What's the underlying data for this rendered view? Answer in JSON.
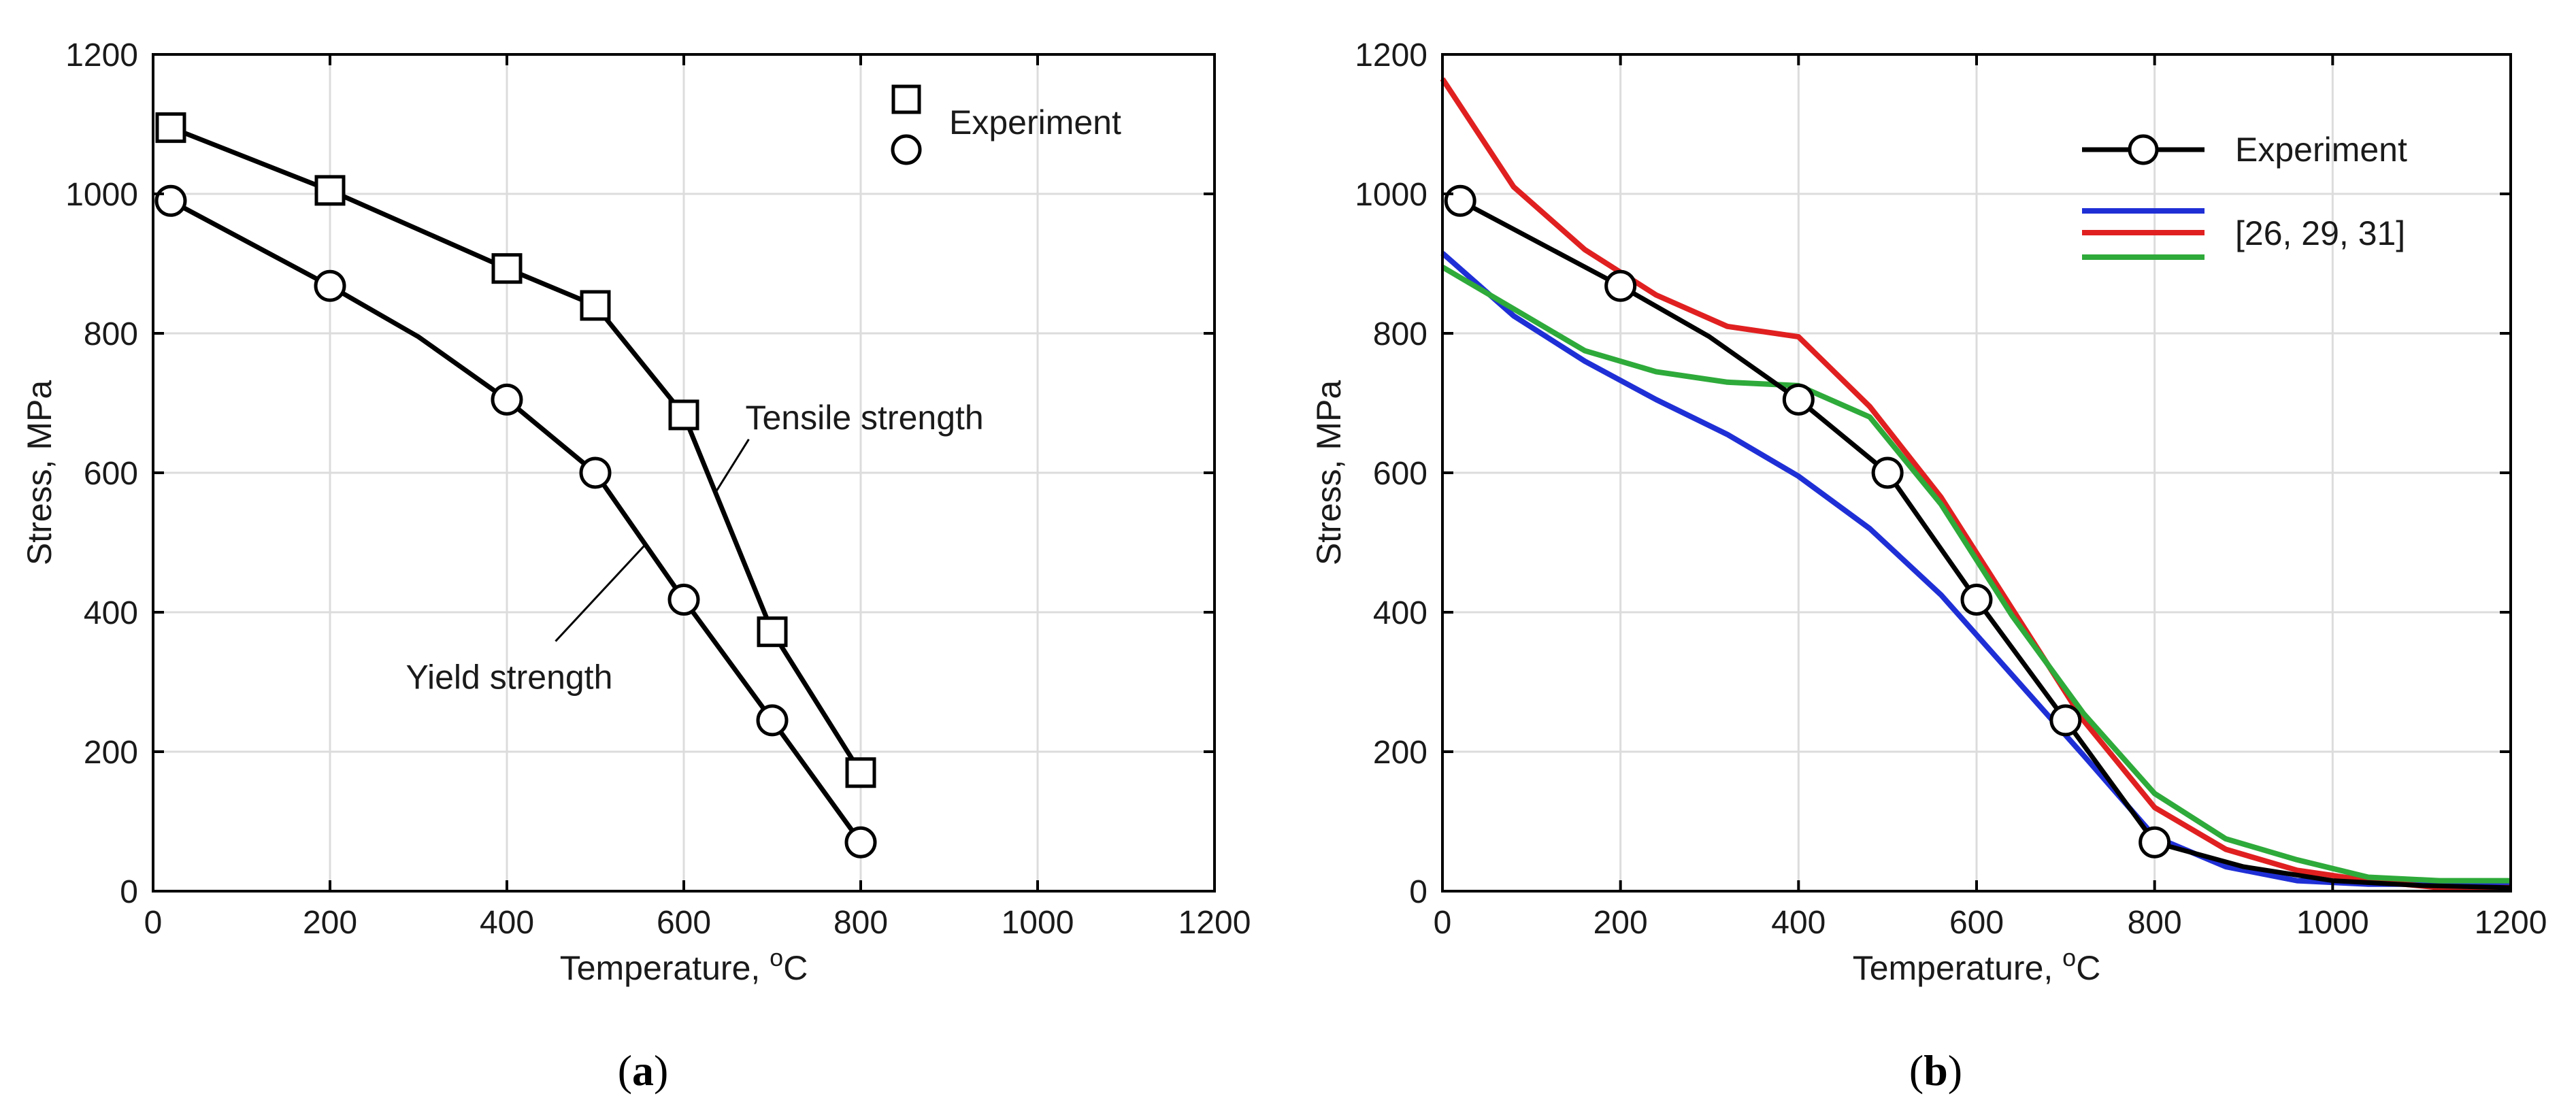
{
  "colors": {
    "experiment": "#000000",
    "model_blue": "#1f2fd6",
    "model_red": "#e02020",
    "model_green": "#2eaa3a",
    "grid": "#dcdcdc"
  },
  "chart_data": [
    {
      "type": "line",
      "panel": "(a)",
      "panel_letter": "a",
      "xlabel": "Temperature, ",
      "xlabel_unit": "C",
      "xlabel_sup": "o",
      "ylabel": "Stress, MPa",
      "xlim": [
        0,
        1200
      ],
      "ylim": [
        0,
        1200
      ],
      "xticks": [
        "0",
        "200",
        "400",
        "600",
        "800",
        "1000",
        "1200"
      ],
      "yticks": [
        "0",
        "200",
        "400",
        "600",
        "800",
        "1000",
        "1200"
      ],
      "grid": true,
      "legend_position": "top-right",
      "legend_label": "Experiment",
      "series": [
        {
          "name": "Tensile strength",
          "marker": "square",
          "x": [
            20,
            200,
            400,
            500,
            600,
            700,
            800
          ],
          "y": [
            1095,
            1005,
            893,
            840,
            683,
            372,
            170
          ]
        },
        {
          "name": "Yield strength",
          "marker": "circle",
          "x": [
            20,
            200,
            300,
            400,
            500,
            600,
            700,
            800
          ],
          "y": [
            990,
            868,
            795,
            705,
            600,
            418,
            245,
            70
          ],
          "marker_x": [
            20,
            200,
            400,
            500,
            600,
            700,
            800
          ],
          "marker_y": [
            990,
            868,
            705,
            600,
            418,
            245,
            70
          ]
        }
      ],
      "annotations": [
        {
          "text": "Tensile strength",
          "anchor_x": 635,
          "anchor_y": 570
        },
        {
          "text": "Yield strength",
          "anchor_x": 555,
          "anchor_y": 495
        }
      ]
    },
    {
      "type": "line",
      "panel": "(b)",
      "panel_letter": "b",
      "xlabel": "Temperature, ",
      "xlabel_unit": "C",
      "xlabel_sup": "o",
      "ylabel": "Stress, MPa",
      "xlim": [
        0,
        1200
      ],
      "ylim": [
        0,
        1200
      ],
      "xticks": [
        "0",
        "200",
        "400",
        "600",
        "800",
        "1000",
        "1200"
      ],
      "yticks": [
        "0",
        "200",
        "400",
        "600",
        "800",
        "1000",
        "1200"
      ],
      "grid": true,
      "legend_position": "top-right",
      "legend_experiment_label": "Experiment",
      "legend_models_label": "[26, 29, 31]",
      "series": [
        {
          "name": "Experiment",
          "marker": "circle",
          "x": [
            20,
            200,
            300,
            400,
            500,
            600,
            700,
            800,
            900,
            1000,
            1100,
            1200
          ],
          "y": [
            990,
            868,
            795,
            705,
            600,
            418,
            245,
            70,
            35,
            15,
            8,
            5
          ],
          "marker_x": [
            20,
            200,
            400,
            500,
            600,
            700,
            800
          ],
          "marker_y": [
            990,
            868,
            705,
            600,
            418,
            245,
            70
          ]
        },
        {
          "name": "[26, 29, 31] blue",
          "color_key": "model_blue",
          "x": [
            0,
            80,
            160,
            240,
            320,
            400,
            480,
            560,
            640,
            720,
            800,
            880,
            960,
            1040,
            1120,
            1200
          ],
          "y": [
            915,
            825,
            760,
            705,
            655,
            595,
            520,
            425,
            310,
            195,
            78,
            35,
            15,
            10,
            10,
            10
          ]
        },
        {
          "name": "[26, 29, 31] red",
          "color_key": "model_red",
          "x": [
            0,
            80,
            160,
            240,
            320,
            400,
            480,
            560,
            640,
            720,
            800,
            880,
            960,
            1040,
            1120,
            1200
          ],
          "y": [
            1165,
            1010,
            920,
            855,
            810,
            795,
            695,
            565,
            405,
            245,
            120,
            60,
            30,
            15,
            5,
            5
          ]
        },
        {
          "name": "[26, 29, 31] green",
          "color_key": "model_green",
          "x": [
            0,
            80,
            160,
            240,
            320,
            400,
            480,
            560,
            640,
            720,
            800,
            880,
            960,
            1040,
            1120,
            1200
          ],
          "y": [
            895,
            835,
            775,
            745,
            730,
            725,
            680,
            555,
            395,
            255,
            140,
            75,
            45,
            20,
            15,
            15
          ]
        }
      ]
    }
  ]
}
